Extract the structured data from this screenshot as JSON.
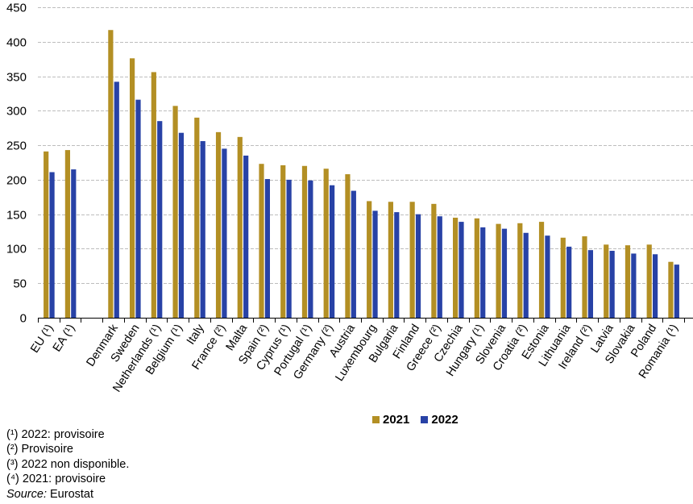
{
  "chart_data": {
    "type": "bar",
    "title": "",
    "xlabel": "",
    "ylabel": "",
    "ylim": [
      0,
      450
    ],
    "yticks": [
      "0",
      "50",
      "100",
      "150",
      "200",
      "250",
      "300",
      "350",
      "400",
      "450"
    ],
    "grid": true,
    "legend_position": "bottom",
    "categories": [
      "EU (¹)",
      "EA (¹)",
      "",
      "Denmark",
      "Sweden",
      "Netherlands (¹)",
      "Belgium (¹)",
      "Italy",
      "France (²)",
      "Malta",
      "Spain (²)",
      "Cyprus (¹)",
      "Portugal (¹)",
      "Germany (²)",
      "Austria",
      "Luxembourg",
      "Bulgaria",
      "Finland",
      "Greece (²)",
      "Czechia",
      "Hungary (¹)",
      "Slovenia",
      "Croatia (²)",
      "Estonia",
      "Lithuania",
      "Ireland (²)",
      "Latvia",
      "Slovakia",
      "Poland",
      "Romania (¹)"
    ],
    "series": [
      {
        "name": "2021",
        "color": "#b38f24",
        "values": [
          241,
          243,
          null,
          417,
          376,
          356,
          307,
          290,
          269,
          262,
          223,
          221,
          220,
          216,
          208,
          169,
          168,
          168,
          165,
          145,
          144,
          136,
          137,
          139,
          116,
          118,
          106,
          105,
          106,
          81
        ]
      },
      {
        "name": "2022",
        "color": "#2842a6",
        "values": [
          211,
          215,
          null,
          342,
          316,
          285,
          268,
          256,
          245,
          235,
          201,
          200,
          199,
          192,
          184,
          155,
          153,
          150,
          147,
          139,
          131,
          129,
          123,
          119,
          103,
          98,
          97,
          93,
          92,
          77
        ]
      }
    ]
  },
  "legend": {
    "items": [
      {
        "label": "2021",
        "color": "#b38f24"
      },
      {
        "label": "2022",
        "color": "#2842a6"
      }
    ]
  },
  "notes": {
    "n1": "(¹) 2022: provisoire",
    "n2": "(²) Provisoire",
    "n3": "(³) 2022 non disponible.",
    "n4": "(⁴) 2021: provisoire",
    "source_label": "Source:",
    "source_value": " Eurostat"
  }
}
